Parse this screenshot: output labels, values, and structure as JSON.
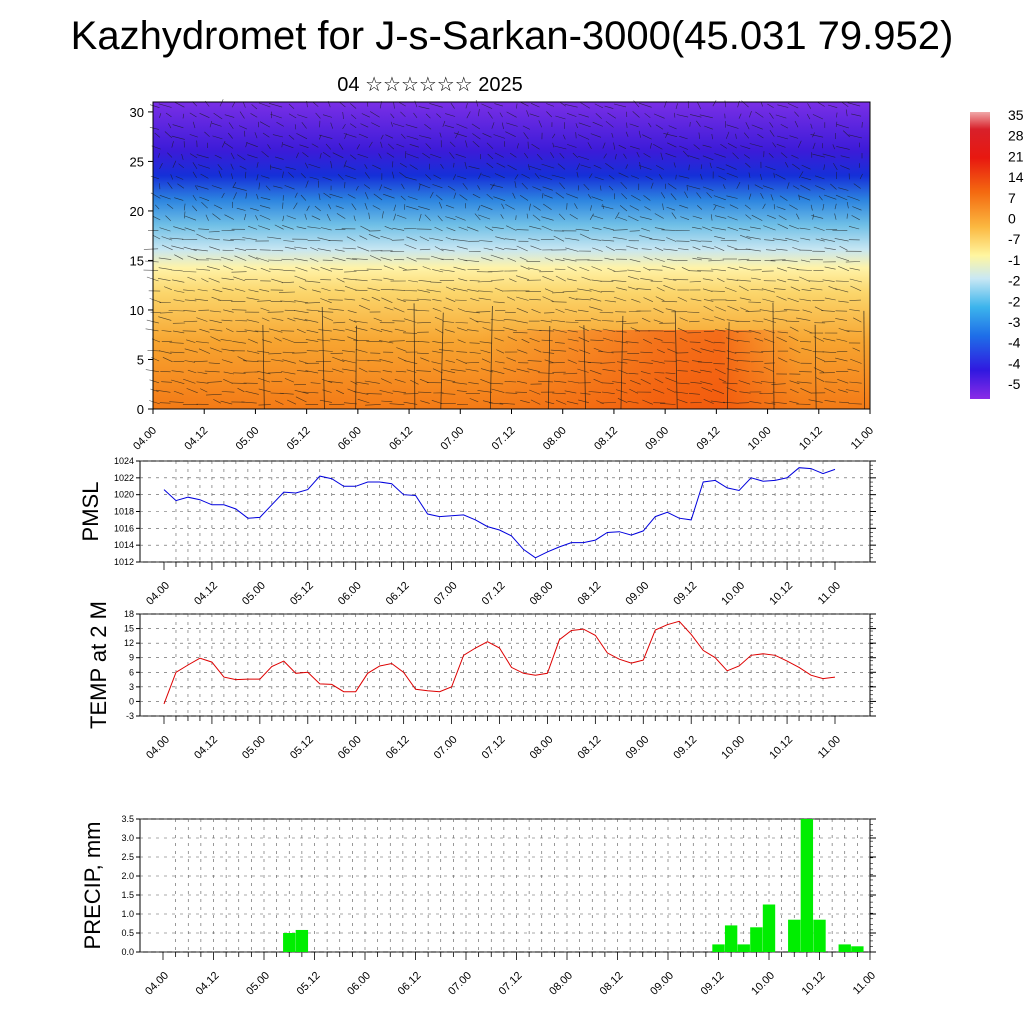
{
  "header": {
    "title": "Kazhydromet for J-s-Sarkan-3000(45.031 79.952)",
    "subtitle": "04 ☆☆☆☆☆☆ 2025"
  },
  "colors": {
    "pmsl_line": "#0000dd",
    "temp_line": "#dd0000",
    "precip_bar": "#00ee00"
  },
  "chart_data": [
    {
      "type": "heatmap",
      "panel": "cross-section",
      "title": "",
      "xlabel": "",
      "ylabel": "",
      "x_tick_labels": [
        "04.00",
        "04.12",
        "05.00",
        "05.12",
        "06.00",
        "06.12",
        "07.00",
        "07.12",
        "08.00",
        "08.12",
        "09.00",
        "09.12",
        "10.00",
        "10.12",
        "11.00"
      ],
      "yticks": [
        0,
        5,
        10,
        15,
        20,
        25,
        30
      ],
      "ylim": [
        0,
        31
      ],
      "colorbar_labels": [
        "35",
        "28",
        "21",
        "14",
        "7",
        "0",
        "-7",
        "-1",
        "-2",
        "-2",
        "-3",
        "-4",
        "-4",
        "-5"
      ],
      "temperature_bands": [
        {
          "level": 0,
          "value": 5
        },
        {
          "level": 8,
          "value": 0
        },
        {
          "level": 13,
          "value": -8
        },
        {
          "level": 18,
          "value": -25
        },
        {
          "level": 23,
          "value": -45
        },
        {
          "level": 28,
          "value": -55
        }
      ]
    },
    {
      "type": "line",
      "panel": "pmsl",
      "ylabel": "PMSL",
      "ylim": [
        1012,
        1024
      ],
      "yticks": [
        1012,
        1014,
        1016,
        1018,
        1020,
        1022,
        1024
      ],
      "x_tick_labels": [
        "04.00",
        "04.12",
        "05.00",
        "05.12",
        "06.00",
        "06.12",
        "07.00",
        "07.12",
        "08.00",
        "08.12",
        "09.00",
        "09.12",
        "10.00",
        "10.12",
        "11.00"
      ],
      "series": [
        {
          "values": [
            1020.6,
            1019.3,
            1019.7,
            1019.4,
            1018.8,
            1018.8,
            1018.3,
            1017.2,
            1017.3,
            1018.8,
            1020.3,
            1020.2,
            1020.6,
            1022.2,
            1021.9,
            1021.0,
            1021.0,
            1021.5,
            1021.5,
            1021.3,
            1020.0,
            1019.9,
            1017.7,
            1017.4,
            1017.5,
            1017.6,
            1017.0,
            1016.2,
            1015.8,
            1015.1,
            1013.5,
            1012.5,
            1013.2,
            1013.8,
            1014.3,
            1014.3,
            1014.6,
            1015.5,
            1015.6,
            1015.2,
            1015.7,
            1017.4,
            1017.9,
            1017.2,
            1017.0,
            1021.5,
            1021.7,
            1020.8,
            1020.5,
            1022.0,
            1021.6,
            1021.7,
            1022.0,
            1023.2,
            1023.1,
            1022.5,
            1023.0
          ]
        }
      ]
    },
    {
      "type": "line",
      "panel": "temperature",
      "ylabel": "TEMP at 2 M",
      "ylim": [
        -3,
        18
      ],
      "yticks": [
        -3,
        0,
        3,
        6,
        9,
        12,
        15,
        18
      ],
      "x_tick_labels": [
        "04.00",
        "04.12",
        "05.00",
        "05.12",
        "06.00",
        "06.12",
        "07.00",
        "07.12",
        "08.00",
        "08.12",
        "09.00",
        "09.12",
        "10.00",
        "10.12",
        "11.00"
      ],
      "series": [
        {
          "values": [
            -0.5,
            6.0,
            7.5,
            8.9,
            8.1,
            5.0,
            4.5,
            4.6,
            4.6,
            7.2,
            8.3,
            5.8,
            6.0,
            3.6,
            3.5,
            2.0,
            2.0,
            5.8,
            7.3,
            7.8,
            6.0,
            2.5,
            2.2,
            2.0,
            3.0,
            9.5,
            11.0,
            12.3,
            11.0,
            7.0,
            5.8,
            5.4,
            5.8,
            12.7,
            14.6,
            14.9,
            13.6,
            10.0,
            8.7,
            7.9,
            8.5,
            14.7,
            15.8,
            16.5,
            13.8,
            10.5,
            9.0,
            6.3,
            7.3,
            9.5,
            9.8,
            9.5,
            8.3,
            7.0,
            5.4,
            4.7,
            5.0
          ]
        }
      ]
    },
    {
      "type": "bar",
      "panel": "precipitation",
      "ylabel": "PRECIP, mm",
      "ylim": [
        0,
        3.5
      ],
      "yticks": [
        "0.0",
        "0.5",
        "1.0",
        "1.5",
        "2.0",
        "2.5",
        "3.0",
        "3.5"
      ],
      "x_tick_labels": [
        "04.00",
        "04.12",
        "05.00",
        "05.12",
        "06.00",
        "06.12",
        "07.00",
        "07.12",
        "08.00",
        "08.12",
        "09.00",
        "09.12",
        "10.00",
        "10.12",
        "11.00"
      ],
      "series": [
        {
          "values": [
            0,
            0,
            0,
            0,
            0,
            0,
            0,
            0,
            0,
            0,
            0,
            0,
            0,
            0,
            0,
            0,
            0,
            0,
            0,
            0,
            0,
            0,
            0,
            0,
            0,
            0,
            0,
            0,
            0,
            0,
            0,
            0,
            0,
            0,
            0,
            0,
            0,
            0,
            0,
            0,
            0,
            0,
            0,
            0,
            0.2,
            0.7,
            0.2,
            0.65,
            1.25,
            0,
            0.85,
            3.5,
            0.85,
            0,
            0.2,
            0.15,
            0
          ]
        }
      ],
      "bars_day5": [
        0,
        0,
        0,
        0,
        0,
        0,
        0,
        0,
        0,
        0,
        0.5,
        0.58,
        0,
        0
      ]
    }
  ]
}
